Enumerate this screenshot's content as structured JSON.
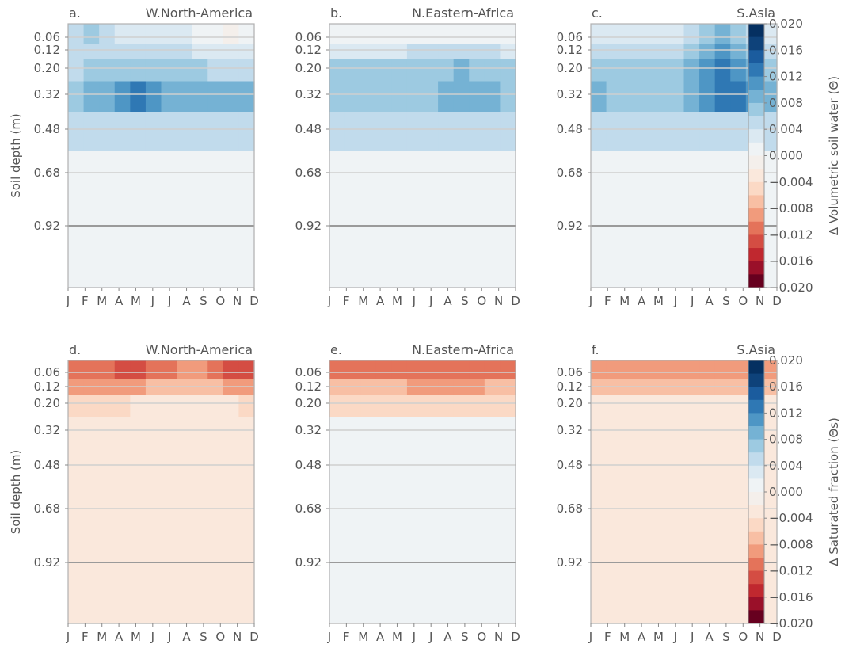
{
  "chart_data": {
    "type": "heatmap",
    "months": [
      "J",
      "F",
      "M",
      "A",
      "M",
      "J",
      "J",
      "A",
      "S",
      "O",
      "N",
      "D"
    ],
    "depths": [
      0.06,
      0.12,
      0.2,
      0.32,
      0.48,
      0.68,
      0.92
    ],
    "depth_tick_labels": [
      "0.06",
      "0.12",
      "0.20",
      "0.32",
      "0.48",
      "0.68",
      "0.92"
    ],
    "ylabel": "Soil depth (m)",
    "colorbars": [
      {
        "row": 0,
        "label": "Δ Volumetric soil water (Θ)",
        "range": [
          -0.02,
          0.02
        ],
        "levels": 20,
        "cmap": "RdBu",
        "tick_labels": [
          "0.020",
          "0.016",
          "0.012",
          "0.008",
          "0.004",
          "0.000",
          "−0.004",
          "−0.008",
          "−0.012",
          "−0.016",
          "−0.020"
        ]
      },
      {
        "row": 1,
        "label": "Δ Saturated fraction (Θs)",
        "range": [
          -0.02,
          0.02
        ],
        "levels": 20,
        "cmap": "RdBu",
        "tick_labels": [
          "0.020",
          "0.016",
          "0.012",
          "0.008",
          "0.004",
          "0.000",
          "−0.004",
          "−0.008",
          "−0.012",
          "−0.016",
          "−0.020"
        ]
      }
    ],
    "panels": [
      {
        "tag": "a.",
        "region": "W.North-America",
        "row": 0,
        "col": 0,
        "background": 0.0005,
        "values": [
          [
            0.005,
            0.006,
            0.004,
            0.002,
            0.002,
            0.002,
            0.002,
            0.002,
            0.001,
            0.0,
            -0.002,
            0.001
          ],
          [
            0.004,
            0.005,
            0.005,
            0.004,
            0.004,
            0.004,
            0.004,
            0.004,
            0.003,
            0.002,
            0.002,
            0.003
          ],
          [
            0.005,
            0.006,
            0.006,
            0.006,
            0.007,
            0.006,
            0.006,
            0.006,
            0.006,
            0.005,
            0.005,
            0.005
          ],
          [
            0.007,
            0.008,
            0.009,
            0.011,
            0.012,
            0.01,
            0.008,
            0.008,
            0.008,
            0.008,
            0.008,
            0.008
          ],
          [
            0.004,
            0.004,
            0.004,
            0.004,
            0.004,
            0.004,
            0.004,
            0.004,
            0.004,
            0.004,
            0.004,
            0.004
          ],
          [
            0.0005,
            0.0005,
            0.0005,
            0.0005,
            0.0005,
            0.0005,
            0.0005,
            0.0005,
            0.0005,
            0.0005,
            0.0005,
            0.0005
          ],
          [
            0.0005,
            0.0005,
            0.0005,
            0.0005,
            0.0005,
            0.0005,
            0.0005,
            0.0005,
            0.0005,
            0.0005,
            0.0005,
            0.0005
          ]
        ]
      },
      {
        "tag": "b.",
        "region": "N.Eastern-Africa",
        "row": 0,
        "col": 1,
        "background": 0.0005,
        "values": [
          [
            0.0005,
            0.0005,
            0.0005,
            0.0005,
            0.0005,
            0.0005,
            0.0005,
            0.0005,
            0.0005,
            0.0005,
            0.0005,
            0.0005
          ],
          [
            0.003,
            0.003,
            0.003,
            0.003,
            0.003,
            0.004,
            0.004,
            0.004,
            0.005,
            0.004,
            0.004,
            0.003
          ],
          [
            0.006,
            0.006,
            0.006,
            0.006,
            0.006,
            0.007,
            0.007,
            0.007,
            0.008,
            0.007,
            0.007,
            0.006
          ],
          [
            0.006,
            0.006,
            0.006,
            0.006,
            0.006,
            0.007,
            0.007,
            0.008,
            0.009,
            0.008,
            0.008,
            0.007
          ],
          [
            0.004,
            0.004,
            0.004,
            0.004,
            0.004,
            0.004,
            0.004,
            0.004,
            0.004,
            0.004,
            0.004,
            0.004
          ],
          [
            0.0005,
            0.0005,
            0.0005,
            0.0005,
            0.0005,
            0.0005,
            0.0005,
            0.0005,
            0.0005,
            0.0005,
            0.0005,
            0.0005
          ],
          [
            0.0005,
            0.0005,
            0.0005,
            0.0005,
            0.0005,
            0.0005,
            0.0005,
            0.0005,
            0.0005,
            0.0005,
            0.0005,
            0.0005
          ]
        ]
      },
      {
        "tag": "c.",
        "region": "S.Asia",
        "row": 0,
        "col": 2,
        "background": 0.0005,
        "values": [
          [
            0.003,
            0.003,
            0.002,
            0.002,
            0.002,
            0.003,
            0.004,
            0.006,
            0.008,
            0.007,
            0.005,
            0.003
          ],
          [
            0.004,
            0.004,
            0.004,
            0.004,
            0.004,
            0.005,
            0.006,
            0.008,
            0.01,
            0.009,
            0.007,
            0.005
          ],
          [
            0.006,
            0.006,
            0.006,
            0.006,
            0.006,
            0.007,
            0.008,
            0.01,
            0.012,
            0.011,
            0.009,
            0.007
          ],
          [
            0.008,
            0.007,
            0.007,
            0.007,
            0.007,
            0.007,
            0.008,
            0.01,
            0.013,
            0.013,
            0.01,
            0.008
          ],
          [
            0.004,
            0.004,
            0.004,
            0.004,
            0.004,
            0.004,
            0.004,
            0.004,
            0.004,
            0.004,
            0.004,
            0.004
          ],
          [
            0.0005,
            0.0005,
            0.0005,
            0.0005,
            0.0005,
            0.0005,
            0.0005,
            0.0005,
            0.0005,
            0.0005,
            0.0005,
            0.0005
          ],
          [
            0.0005,
            0.0005,
            0.0005,
            0.0005,
            0.0005,
            0.0005,
            0.0005,
            0.0005,
            0.0005,
            0.0005,
            0.0005,
            0.0005
          ]
        ]
      },
      {
        "tag": "d.",
        "region": "W.North-America",
        "row": 1,
        "col": 0,
        "background": -0.0025,
        "values": [
          [
            -0.011,
            -0.011,
            -0.012,
            -0.013,
            -0.014,
            -0.012,
            -0.011,
            -0.01,
            -0.01,
            -0.011,
            -0.013,
            -0.014
          ],
          [
            -0.009,
            -0.009,
            -0.009,
            -0.009,
            -0.009,
            -0.008,
            -0.007,
            -0.007,
            -0.007,
            -0.008,
            -0.009,
            -0.01
          ],
          [
            -0.006,
            -0.006,
            -0.006,
            -0.005,
            -0.004,
            -0.004,
            -0.003,
            -0.003,
            -0.003,
            -0.003,
            -0.004,
            -0.006
          ],
          [
            -0.004,
            -0.004,
            -0.003,
            -0.003,
            -0.003,
            -0.003,
            -0.003,
            -0.003,
            -0.003,
            -0.003,
            -0.003,
            -0.003
          ],
          [
            -0.0025,
            -0.0025,
            -0.0025,
            -0.0025,
            -0.0025,
            -0.0025,
            -0.0025,
            -0.0025,
            -0.0025,
            -0.0025,
            -0.0025,
            -0.0025
          ],
          [
            -0.0025,
            -0.0025,
            -0.0025,
            -0.0025,
            -0.0025,
            -0.0025,
            -0.0025,
            -0.0025,
            -0.0025,
            -0.0025,
            -0.0025,
            -0.0025
          ],
          [
            -0.0025,
            -0.0025,
            -0.0025,
            -0.0025,
            -0.0025,
            -0.0025,
            -0.0025,
            -0.0025,
            -0.0025,
            -0.0025,
            -0.0025,
            -0.0025
          ]
        ]
      },
      {
        "tag": "e.",
        "region": "N.Eastern-Africa",
        "row": 1,
        "col": 1,
        "background": 0.0005,
        "values": [
          [
            -0.011,
            -0.011,
            -0.011,
            -0.011,
            -0.011,
            -0.011,
            -0.011,
            -0.011,
            -0.011,
            -0.011,
            -0.011,
            -0.011
          ],
          [
            -0.008,
            -0.008,
            -0.008,
            -0.008,
            -0.008,
            -0.009,
            -0.009,
            -0.009,
            -0.009,
            -0.009,
            -0.008,
            -0.008
          ],
          [
            -0.005,
            -0.005,
            -0.005,
            -0.005,
            -0.005,
            -0.005,
            -0.005,
            -0.005,
            -0.005,
            -0.005,
            -0.005,
            -0.005
          ],
          [
            0.0005,
            0.0005,
            0.0005,
            0.0005,
            0.0005,
            0.0005,
            0.0005,
            0.0005,
            0.0005,
            0.0005,
            0.0005,
            0.0005
          ],
          [
            0.0005,
            0.0005,
            0.0005,
            0.0005,
            0.0005,
            0.0005,
            0.0005,
            0.0005,
            0.0005,
            0.0005,
            0.0005,
            0.0005
          ],
          [
            0.0005,
            0.0005,
            0.0005,
            0.0005,
            0.0005,
            0.0005,
            0.0005,
            0.0005,
            0.0005,
            0.0005,
            0.0005,
            0.0005
          ],
          [
            0.0005,
            0.0005,
            0.0005,
            0.0005,
            0.0005,
            0.0005,
            0.0005,
            0.0005,
            0.0005,
            0.0005,
            0.0005,
            0.0005
          ]
        ]
      },
      {
        "tag": "f.",
        "region": "S.Asia",
        "row": 1,
        "col": 2,
        "background": -0.0025,
        "values": [
          [
            -0.01,
            -0.009,
            -0.009,
            -0.009,
            -0.009,
            -0.009,
            -0.01,
            -0.01,
            -0.01,
            -0.01,
            -0.009,
            -0.009
          ],
          [
            -0.007,
            -0.007,
            -0.007,
            -0.007,
            -0.007,
            -0.007,
            -0.007,
            -0.008,
            -0.008,
            -0.008,
            -0.007,
            -0.007
          ],
          [
            -0.004,
            -0.004,
            -0.004,
            -0.004,
            -0.004,
            -0.004,
            -0.004,
            -0.004,
            -0.004,
            -0.004,
            -0.004,
            -0.004
          ],
          [
            -0.0025,
            -0.0025,
            -0.0025,
            -0.0025,
            -0.0025,
            -0.0025,
            -0.0025,
            -0.0025,
            -0.0025,
            -0.0025,
            -0.0025,
            -0.0025
          ],
          [
            -0.0025,
            -0.0025,
            -0.0025,
            -0.0025,
            -0.0025,
            -0.0025,
            -0.0025,
            -0.0025,
            -0.0025,
            -0.0025,
            -0.0025,
            -0.0025
          ],
          [
            -0.0025,
            -0.0025,
            -0.0025,
            -0.0025,
            -0.0025,
            -0.0025,
            -0.0025,
            -0.0025,
            -0.0025,
            -0.0025,
            -0.0025,
            -0.0025
          ],
          [
            -0.0025,
            -0.0025,
            -0.0025,
            -0.0025,
            -0.0025,
            -0.0025,
            -0.0025,
            -0.0025,
            -0.0025,
            -0.0025,
            -0.0025,
            -0.0025
          ]
        ]
      }
    ]
  }
}
